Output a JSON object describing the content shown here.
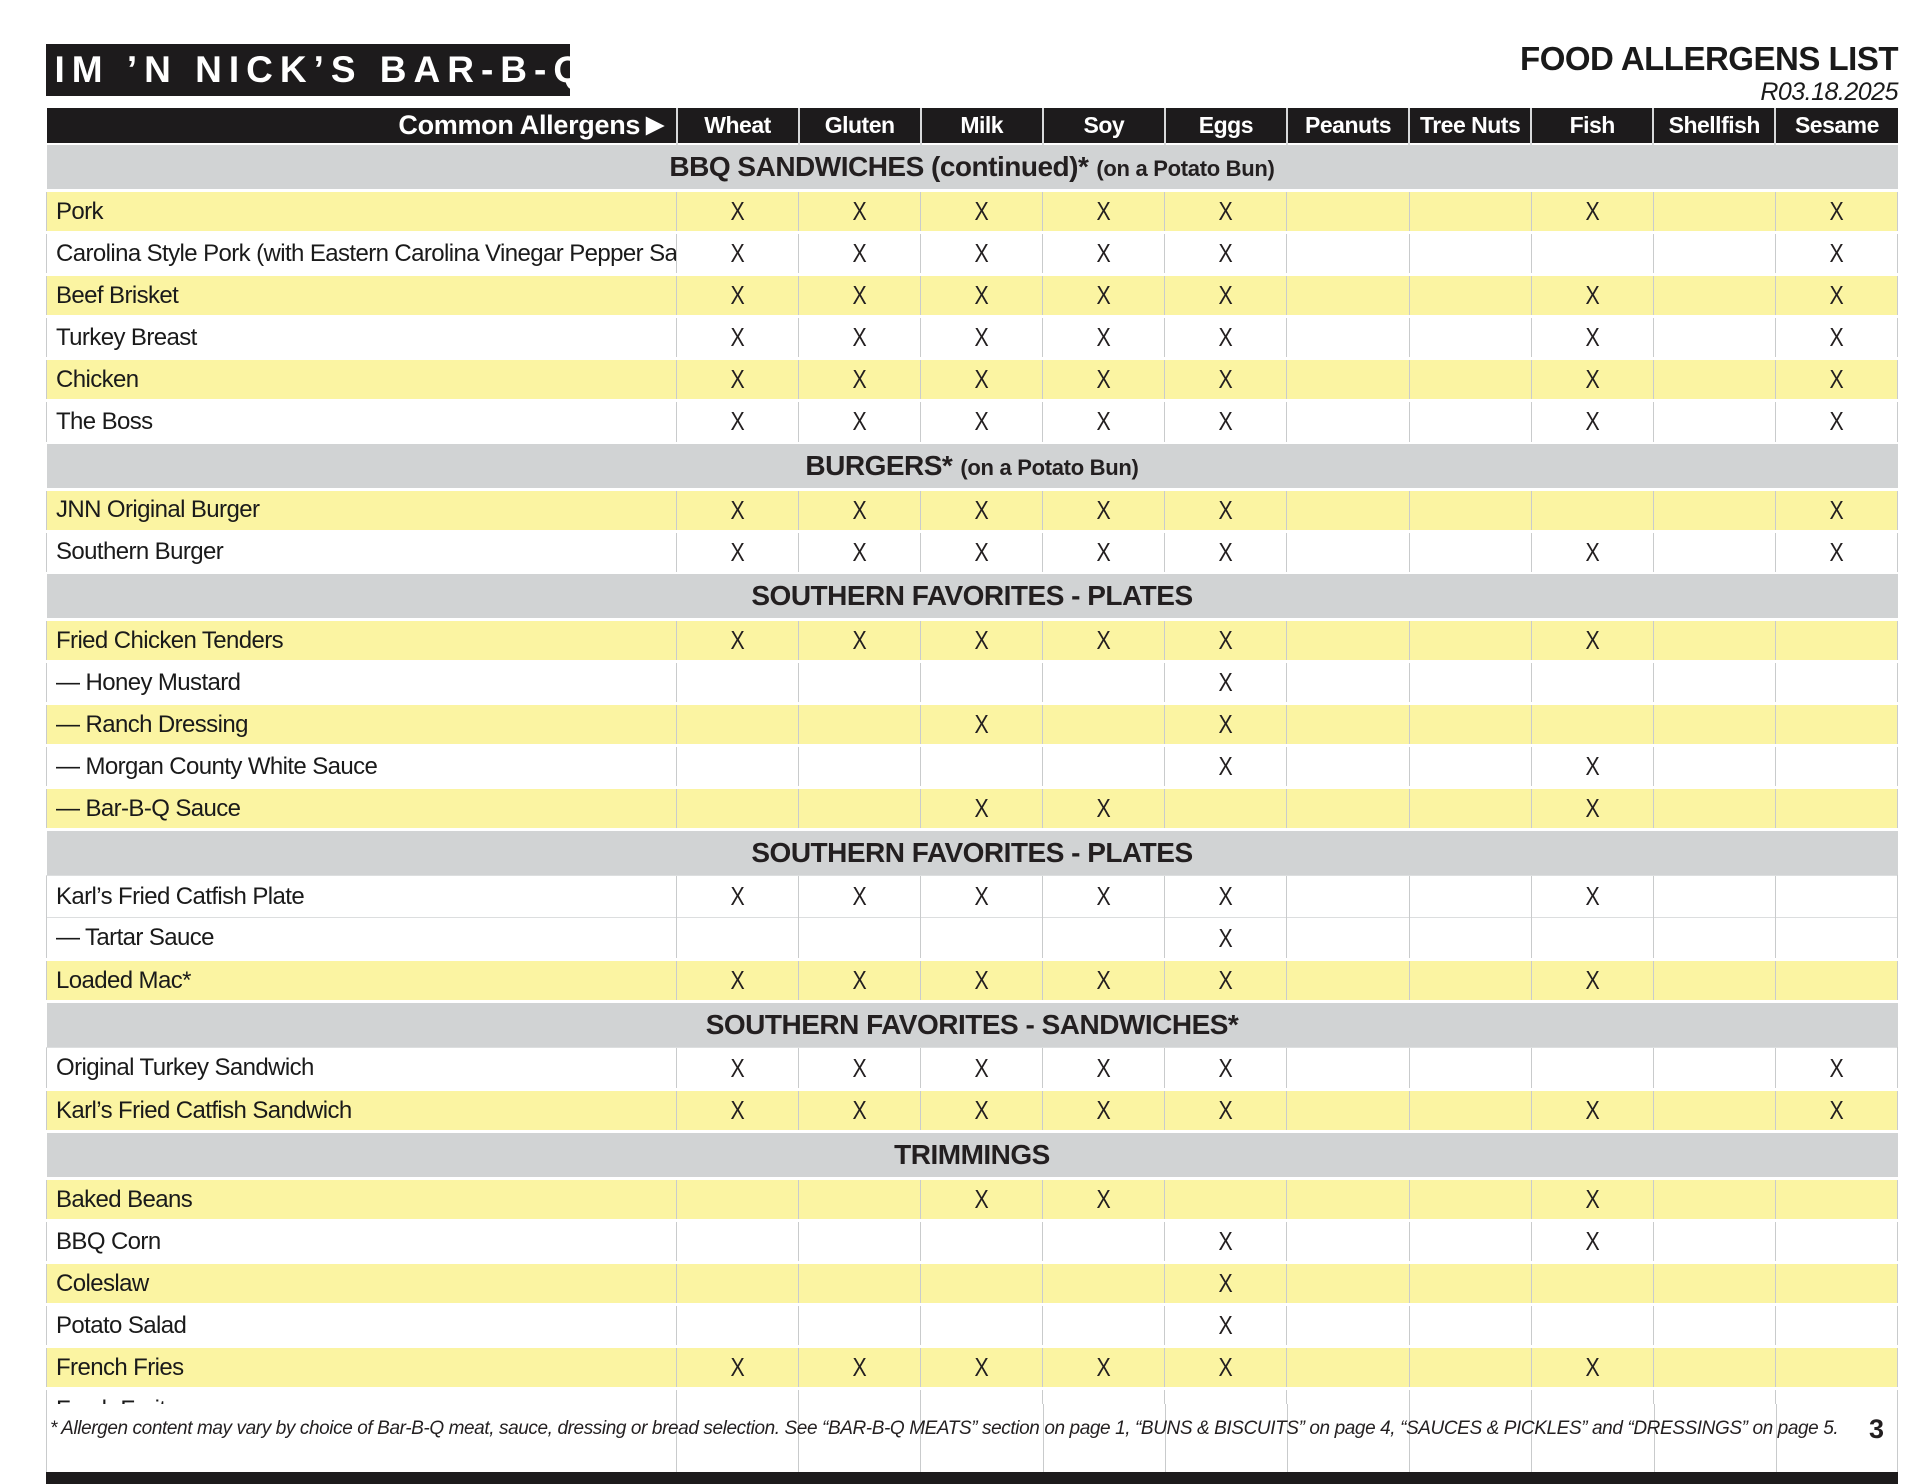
{
  "page": {
    "logo": "JIM ’N NICK’S BAR-B-Q",
    "title": "FOOD ALLERGENS LIST",
    "revision": "R03.18.2025",
    "page_number": "3",
    "footnote": "* Allergen content may vary by choice of Bar-B-Q meat, sauce, dressing or bread selection. See “BAR-B-Q MEATS” section on page 1,  “BUNS & BISCUITS” on page 4, “SAUCES & PICKLES”  and “DRESSINGS” on page 5."
  },
  "colors": {
    "header_bg": "#1d1b1c",
    "section_band": "#d1d3d4",
    "row_highlight": "#fbf4a2",
    "grid_line": "#c9cbcc"
  },
  "table": {
    "corner_label": "Common Allergens",
    "corner_arrow": "▶",
    "mark": "X",
    "allergens": [
      "Wheat",
      "Gluten",
      "Milk",
      "Soy",
      "Eggs",
      "Peanuts",
      "Tree Nuts",
      "Fish",
      "Shellfish",
      "Sesame"
    ],
    "sections": [
      {
        "title": "BBQ SANDWICHES (continued)*",
        "suffix": "(on a Potato Bun)",
        "rows": [
          {
            "item": "Pork",
            "highlight": true,
            "allergens": [
              "Wheat",
              "Gluten",
              "Milk",
              "Soy",
              "Eggs",
              "Fish",
              "Sesame"
            ]
          },
          {
            "item": "Carolina Style Pork (with Eastern Carolina Vinegar Pepper Sauce)",
            "highlight": false,
            "allergens": [
              "Wheat",
              "Gluten",
              "Milk",
              "Soy",
              "Eggs",
              "Sesame"
            ]
          },
          {
            "item": "Beef Brisket",
            "highlight": true,
            "allergens": [
              "Wheat",
              "Gluten",
              "Milk",
              "Soy",
              "Eggs",
              "Fish",
              "Sesame"
            ]
          },
          {
            "item": "Turkey Breast",
            "highlight": false,
            "allergens": [
              "Wheat",
              "Gluten",
              "Milk",
              "Soy",
              "Eggs",
              "Fish",
              "Sesame"
            ]
          },
          {
            "item": "Chicken",
            "highlight": true,
            "allergens": [
              "Wheat",
              "Gluten",
              "Milk",
              "Soy",
              "Eggs",
              "Fish",
              "Sesame"
            ]
          },
          {
            "item": "The Boss",
            "highlight": false,
            "allergens": [
              "Wheat",
              "Gluten",
              "Milk",
              "Soy",
              "Eggs",
              "Fish",
              "Sesame"
            ]
          }
        ]
      },
      {
        "title": "BURGERS*",
        "suffix": "(on a Potato Bun)",
        "rows": [
          {
            "item": "JNN Original Burger",
            "highlight": true,
            "allergens": [
              "Wheat",
              "Gluten",
              "Milk",
              "Soy",
              "Eggs",
              "Sesame"
            ]
          },
          {
            "item": "Southern Burger",
            "highlight": false,
            "allergens": [
              "Wheat",
              "Gluten",
              "Milk",
              "Soy",
              "Eggs",
              "Fish",
              "Sesame"
            ]
          }
        ]
      },
      {
        "title": "SOUTHERN FAVORITES - PLATES",
        "suffix": "",
        "rows": [
          {
            "item": "Fried Chicken Tenders",
            "highlight": true,
            "allergens": [
              "Wheat",
              "Gluten",
              "Milk",
              "Soy",
              "Eggs",
              "Fish"
            ]
          },
          {
            "item": "— Honey Mustard",
            "highlight": false,
            "allergens": [
              "Eggs"
            ]
          },
          {
            "item": "— Ranch Dressing",
            "highlight": true,
            "allergens": [
              "Milk",
              "Eggs"
            ]
          },
          {
            "item": "— Morgan County White Sauce",
            "highlight": false,
            "allergens": [
              "Eggs",
              "Fish"
            ]
          },
          {
            "item": "— Bar-B-Q Sauce",
            "highlight": true,
            "allergens": [
              "Milk",
              "Soy",
              "Fish"
            ]
          }
        ]
      },
      {
        "title": "SOUTHERN FAVORITES - PLATES",
        "suffix": "",
        "rows": [
          {
            "item": "Karl’s Fried Catfish Plate",
            "highlight": false,
            "allergens": [
              "Wheat",
              "Gluten",
              "Milk",
              "Soy",
              "Eggs",
              "Fish"
            ]
          },
          {
            "item": "— Tartar Sauce",
            "highlight": false,
            "allergens": [
              "Eggs"
            ]
          },
          {
            "item": "Loaded Mac*",
            "highlight": true,
            "allergens": [
              "Wheat",
              "Gluten",
              "Milk",
              "Soy",
              "Eggs",
              "Fish"
            ]
          }
        ]
      },
      {
        "title": "SOUTHERN FAVORITES - SANDWICHES*",
        "suffix": "",
        "rows": [
          {
            "item": "Original Turkey Sandwich",
            "highlight": false,
            "allergens": [
              "Wheat",
              "Gluten",
              "Milk",
              "Soy",
              "Eggs",
              "Sesame"
            ]
          },
          {
            "item": "Karl’s Fried Catfish Sandwich",
            "highlight": true,
            "allergens": [
              "Wheat",
              "Gluten",
              "Milk",
              "Soy",
              "Eggs",
              "Fish",
              "Sesame"
            ]
          }
        ]
      },
      {
        "title": "TRIMMINGS",
        "suffix": "",
        "rows": [
          {
            "item": "Baked Beans",
            "highlight": true,
            "allergens": [
              "Milk",
              "Soy",
              "Fish"
            ]
          },
          {
            "item": "BBQ Corn",
            "highlight": false,
            "allergens": [
              "Eggs",
              "Fish"
            ]
          },
          {
            "item": "Coleslaw",
            "highlight": true,
            "allergens": [
              "Eggs"
            ]
          },
          {
            "item": "Potato Salad",
            "highlight": false,
            "allergens": [
              "Eggs"
            ]
          },
          {
            "item": "French Fries",
            "highlight": true,
            "allergens": [
              "Wheat",
              "Gluten",
              "Milk",
              "Soy",
              "Eggs",
              "Fish"
            ]
          },
          {
            "item": "Fresh Fruit",
            "highlight": false,
            "allergens": []
          }
        ]
      }
    ]
  }
}
